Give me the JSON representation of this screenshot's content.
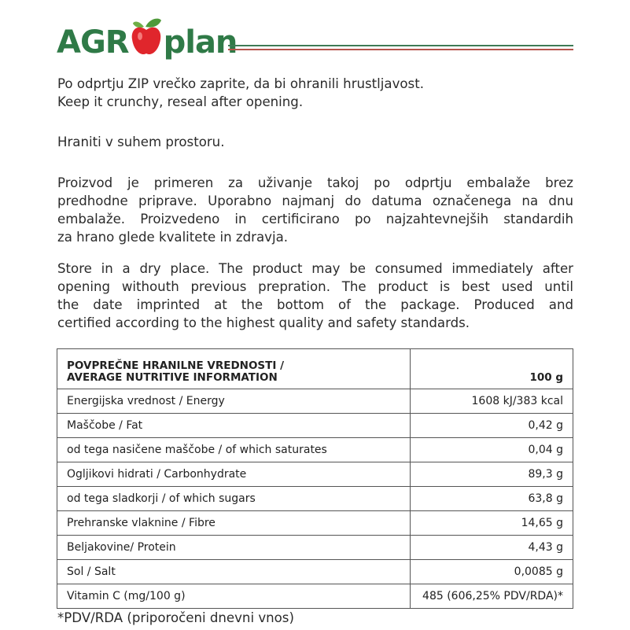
{
  "logo": {
    "left": "AGR",
    "right": "plan",
    "colors": {
      "green": "#2f7a47",
      "red": "#e0262c"
    }
  },
  "p1": [
    "Po odprtju ZIP vrečko zaprite, da bi ohranili hrustljavost.",
    "Keep it crunchy, reseal after opening."
  ],
  "p2": [
    "Hraniti v suhem prostoru."
  ],
  "p3": [
    "Proizvod je primeren za uživanje takoj po odprtju embalaže brez",
    "predhodne priprave. Uporabno najmanj do datuma označenega na dnu",
    "embalaže. Proizvedeno in certificirano po najzahtevnejših standardih",
    "za hrano glede kvalitete in zdravja."
  ],
  "p4": [
    "Store in a dry place. The product may be consumed immediately after",
    "opening withouth previous prepration. The product is best used until",
    "the date imprinted at the bottom of the package. Produced and",
    "certified according to the highest quality and safety standards."
  ],
  "table": {
    "header": {
      "line1": "POVPREČNE HRANILNE VREDNOSTI /",
      "line2": "AVERAGE NUTRITIVE INFORMATION",
      "unit": "100 g"
    },
    "rows": [
      {
        "label": "Energijska vrednost / Energy",
        "value": "1608 kJ/383 kcal"
      },
      {
        "label": "Maščobe / Fat",
        "value": "0,42 g"
      },
      {
        "label": "od tega nasičene maščobe / of which saturates",
        "value": "0,04 g"
      },
      {
        "label": "Ogljikovi hidrati / Carbonhydrate",
        "value": "89,3 g"
      },
      {
        "label": "od tega sladkorji / of which sugars",
        "value": "63,8 g"
      },
      {
        "label": "Prehranske vlaknine / Fibre",
        "value": "14,65 g"
      },
      {
        "label": "Beljakovine/ Protein",
        "value": "4,43 g"
      },
      {
        "label": "Sol / Salt",
        "value": "0,0085 g"
      },
      {
        "label": "Vitamin C (mg/100 g)",
        "value": "485 (606,25% PDV/RDA)*"
      }
    ]
  },
  "footnote": "*PDV/RDA (priporočeni dnevni vnos)"
}
